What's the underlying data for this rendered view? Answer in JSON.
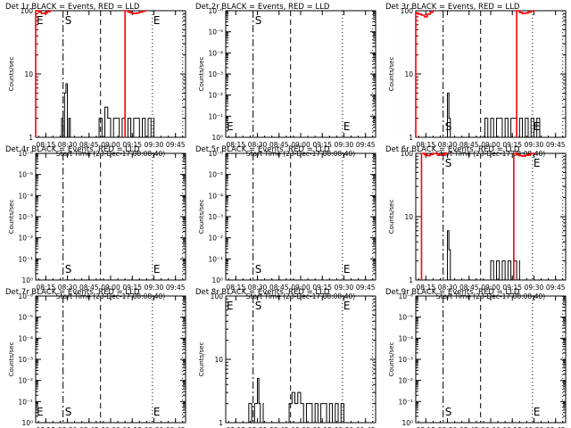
{
  "colors": {
    "events": "#000000",
    "lld": "#ff0000"
  },
  "x_ticks": [
    "08:15",
    "08:30",
    "08:45",
    "09:00",
    "09:15",
    "09:30",
    "09:45"
  ],
  "xlabel": "Start Time (23-Dec-17 08:08:40)",
  "ylabel": "Counts/sec",
  "markers": {
    "start": "S",
    "end": "E"
  },
  "chart_data": [
    {
      "type": "line",
      "title": "Det 1r BLACK = Events, RED = LLD",
      "yscale": "log",
      "yticks": [
        "1",
        "10",
        "100"
      ],
      "ylim": [
        1,
        100
      ],
      "edge_label_left": "E",
      "series": [
        {
          "name": "Events",
          "x": [
            "08:25",
            "08:26",
            "08:27",
            "08:28",
            "08:29",
            "08:30",
            "08:31",
            "08:32",
            "08:33",
            "08:52",
            "08:54",
            "08:56",
            "08:58",
            "09:00",
            "09:02",
            "09:04",
            "09:06",
            "09:08",
            "09:10",
            "09:12",
            "09:14",
            "09:16",
            "09:18",
            "09:20",
            "09:22",
            "09:24",
            "09:26",
            "09:28",
            "09:30"
          ],
          "values": [
            1,
            2,
            1,
            5,
            7,
            1,
            2,
            1,
            1,
            2,
            1,
            3,
            2,
            1,
            2,
            2,
            1,
            2,
            1,
            2,
            1,
            2,
            2,
            1,
            2,
            1,
            2,
            1,
            2
          ]
        },
        {
          "name": "LLD",
          "x": [
            "08:08",
            "08:10",
            "08:12",
            "08:14",
            "08:16",
            "08:18",
            "09:10",
            "09:12",
            "09:14",
            "09:16",
            "09:18",
            "09:20",
            "09:22",
            "09:24"
          ],
          "values": [
            100,
            95,
            90,
            92,
            97,
            100,
            100,
            95,
            92,
            90,
            92,
            95,
            98,
            100
          ]
        }
      ]
    },
    {
      "type": "line",
      "title": "Det 2r BLACK = Events, RED = LLD",
      "yscale": "log",
      "yticks": [
        "10⁰",
        "10⁻¹",
        "10⁻²",
        "10⁻³",
        "10⁻⁴",
        "10⁻⁵",
        "10⁻⁶"
      ],
      "ylim": [
        1,
        1000000
      ],
      "edge_label_left": "E",
      "series": [
        {
          "name": "Events",
          "x": [],
          "values": []
        },
        {
          "name": "LLD",
          "x": [],
          "values": []
        }
      ]
    },
    {
      "type": "line",
      "title": "Det 3r BLACK = Events, RED = LLD",
      "yscale": "log",
      "yticks": [
        "1",
        "10",
        "100"
      ],
      "ylim": [
        1,
        100
      ],
      "edge_label_left": "",
      "series": [
        {
          "name": "Events",
          "x": [
            "08:30",
            "08:31",
            "08:32",
            "08:56",
            "08:58",
            "09:00",
            "09:02",
            "09:04",
            "09:06",
            "09:08",
            "09:10",
            "09:12",
            "09:14",
            "09:16",
            "09:18",
            "09:20",
            "09:22",
            "09:24",
            "09:26",
            "09:28",
            "09:30",
            "09:32",
            "09:34"
          ],
          "values": [
            5,
            2,
            1,
            2,
            1,
            2,
            1,
            2,
            2,
            1,
            2,
            1,
            2,
            2,
            1,
            2,
            1,
            2,
            1,
            2,
            1,
            2,
            1
          ]
        },
        {
          "name": "LLD",
          "x": [
            "08:08",
            "08:10",
            "08:12",
            "08:14",
            "08:16",
            "08:18",
            "08:20",
            "09:18",
            "09:20",
            "09:22",
            "09:24",
            "09:26",
            "09:28",
            "09:30"
          ],
          "values": [
            92,
            88,
            85,
            80,
            88,
            95,
            100,
            100,
            94,
            90,
            92,
            95,
            98,
            100
          ]
        }
      ]
    },
    {
      "type": "line",
      "title": "Det 4r BLACK = Events, RED = LLD",
      "yscale": "log",
      "yticks": [
        "10⁰",
        "10⁻¹",
        "10⁻²",
        "10⁻³",
        "10⁻⁴",
        "10⁻⁵",
        "10⁻⁶"
      ],
      "ylim": [
        1,
        1000000
      ],
      "edge_label_left": "",
      "series": [
        {
          "name": "Events",
          "x": [],
          "values": []
        },
        {
          "name": "LLD",
          "x": [],
          "values": []
        }
      ]
    },
    {
      "type": "line",
      "title": "Det 5r BLACK = Events, RED = LLD",
      "yscale": "log",
      "yticks": [
        "10⁰",
        "10⁻¹",
        "10⁻²",
        "10⁻³",
        "10⁻⁴",
        "10⁻⁵",
        "10⁻⁶"
      ],
      "ylim": [
        1,
        1000000
      ],
      "edge_label_left": "",
      "series": [
        {
          "name": "Events",
          "x": [],
          "values": []
        },
        {
          "name": "LLD",
          "x": [],
          "values": []
        }
      ]
    },
    {
      "type": "line",
      "title": "Det 6r BLACK = Events, RED = LLD",
      "yscale": "log",
      "yticks": [
        "1",
        "10",
        "100"
      ],
      "ylim": [
        1,
        100
      ],
      "edge_label_left": "",
      "series": [
        {
          "name": "Events",
          "x": [
            "08:30",
            "08:31",
            "08:32",
            "09:00",
            "09:02",
            "09:04",
            "09:06",
            "09:08",
            "09:10",
            "09:12",
            "09:14",
            "09:16",
            "09:18",
            "09:20"
          ],
          "values": [
            6,
            3,
            1,
            2,
            1,
            2,
            1,
            2,
            1,
            2,
            1,
            2,
            1,
            2
          ]
        },
        {
          "name": "LLD",
          "x": [
            "08:12",
            "08:14",
            "08:16",
            "08:18",
            "08:20",
            "08:22",
            "08:24",
            "08:26",
            "08:28",
            "08:30",
            "09:16",
            "09:18",
            "09:20",
            "09:22",
            "09:24",
            "09:26",
            "09:28",
            "09:30"
          ],
          "values": [
            100,
            95,
            92,
            96,
            100,
            98,
            94,
            96,
            100,
            100,
            100,
            95,
            92,
            90,
            93,
            96,
            99,
            100
          ]
        }
      ]
    },
    {
      "type": "line",
      "title": "Det 7r BLACK = Events, RED = LLD",
      "yscale": "log",
      "yticks": [
        "10⁰",
        "10⁻¹",
        "10⁻²",
        "10⁻³",
        "10⁻⁴",
        "10⁻⁵",
        "10⁻⁶"
      ],
      "ylim": [
        1,
        1000000
      ],
      "edge_label_left": "",
      "series": [
        {
          "name": "Events",
          "x": [],
          "values": []
        },
        {
          "name": "LLD",
          "x": [],
          "values": []
        }
      ]
    },
    {
      "type": "line",
      "title": "Det 8r BLACK = Events, RED = LLD",
      "yscale": "log",
      "yticks": [
        "1",
        "10",
        "100"
      ],
      "ylim": [
        1,
        100
      ],
      "edge_label_left": "E",
      "series": [
        {
          "name": "Events",
          "x": [
            "08:22",
            "08:24",
            "08:26",
            "08:28",
            "08:30",
            "08:31",
            "08:32",
            "08:34",
            "08:52",
            "08:54",
            "08:56",
            "08:58",
            "09:00",
            "09:02",
            "09:04",
            "09:06",
            "09:08",
            "09:10",
            "09:12",
            "09:14",
            "09:16",
            "09:18",
            "09:20",
            "09:22",
            "09:24",
            "09:26",
            "09:28",
            "09:30"
          ],
          "values": [
            1,
            2,
            1,
            2,
            5,
            2,
            1,
            2,
            2,
            3,
            2,
            3,
            2,
            1,
            2,
            2,
            1,
            2,
            1,
            2,
            2,
            1,
            2,
            1,
            2,
            1,
            2,
            1
          ]
        },
        {
          "name": "LLD",
          "x": [],
          "values": []
        }
      ]
    },
    {
      "type": "line",
      "title": "Det 9r BLACK = Events, RED = LLD",
      "yscale": "log",
      "yticks": [
        "10⁰",
        "10⁻¹",
        "10⁻²",
        "10⁻³",
        "10⁻⁴",
        "10⁻⁵",
        "10⁻⁶"
      ],
      "ylim": [
        1,
        1000000
      ],
      "edge_label_left": "",
      "series": [
        {
          "name": "Events",
          "x": [],
          "values": []
        },
        {
          "name": "LLD",
          "x": [],
          "values": []
        }
      ]
    }
  ]
}
